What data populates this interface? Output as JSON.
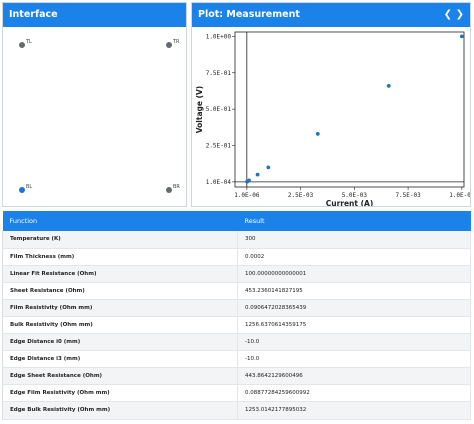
{
  "interface": {
    "title": "Interface",
    "contacts": [
      {
        "label": "TL",
        "color": "grey"
      },
      {
        "label": "TR",
        "color": "grey"
      },
      {
        "label": "BL",
        "color": "blue"
      },
      {
        "label": "BR",
        "color": "grey"
      }
    ]
  },
  "plot": {
    "title": "Plot: Measurement",
    "prev_icon": "chevron-left-icon",
    "prev_glyph": "❮",
    "next_icon": "chevron-right-icon",
    "next_glyph": "❯"
  },
  "chart_data": {
    "type": "scatter",
    "xlabel": "Current (A)",
    "ylabel": "Voltage (V)",
    "xlim": [
      -0.00055,
      0.0101
    ],
    "ylim": [
      -0.035,
      1.03
    ],
    "x_ticks": [
      {
        "value": 1e-06,
        "label": "1.0E-06"
      },
      {
        "value": 0.0025,
        "label": "2.5E-03"
      },
      {
        "value": 0.005,
        "label": "5.0E-03"
      },
      {
        "value": 0.0075,
        "label": "7.5E-03"
      },
      {
        "value": 0.01,
        "label": "1.0E-02"
      }
    ],
    "y_ticks": [
      {
        "value": 0.0001,
        "label": "1.0E-04"
      },
      {
        "value": 0.25,
        "label": "2.5E-01"
      },
      {
        "value": 0.5,
        "label": "5.0E-01"
      },
      {
        "value": 0.75,
        "label": "7.5E-01"
      },
      {
        "value": 1.0,
        "label": "1.0E+00"
      }
    ],
    "points": [
      {
        "x": 1e-05,
        "y": 0.001
      },
      {
        "x": 0.0001,
        "y": 0.01
      },
      {
        "x": 0.0005,
        "y": 0.05
      },
      {
        "x": 0.001,
        "y": 0.1
      },
      {
        "x": 0.0033,
        "y": 0.33
      },
      {
        "x": 0.0066,
        "y": 0.66
      },
      {
        "x": 0.01,
        "y": 1.0
      }
    ],
    "color": "#1f77b4",
    "grid": false
  },
  "table": {
    "headers": [
      "Function",
      "Result"
    ],
    "rows": [
      {
        "function": "Temperature (K)",
        "result": "300"
      },
      {
        "function": "Film Thickness (mm)",
        "result": "0.0002"
      },
      {
        "function": "Linear Fit Resistance (Ohm)",
        "result": "100.00000000000001"
      },
      {
        "function": "Sheet Resistance (Ohm)",
        "result": "453.2360141827195"
      },
      {
        "function": "Film Resistivity (Ohm mm)",
        "result": "0.0906472028365439"
      },
      {
        "function": "Bulk Resistivity (Ohm mm)",
        "result": "1256.6370614359175"
      },
      {
        "function": "Edge Distance i0 (mm)",
        "result": "-10.0"
      },
      {
        "function": "Edge Distance i3 (mm)",
        "result": "-10.0"
      },
      {
        "function": "Edge Sheet Resistance (Ohm)",
        "result": "443.8642129600496"
      },
      {
        "function": "Edge Film Resistivity (Ohm mm)",
        "result": "0.08877284259600992"
      },
      {
        "function": "Edge Bulk Resistivity (Ohm mm)",
        "result": "1253.0142177895032"
      }
    ]
  }
}
